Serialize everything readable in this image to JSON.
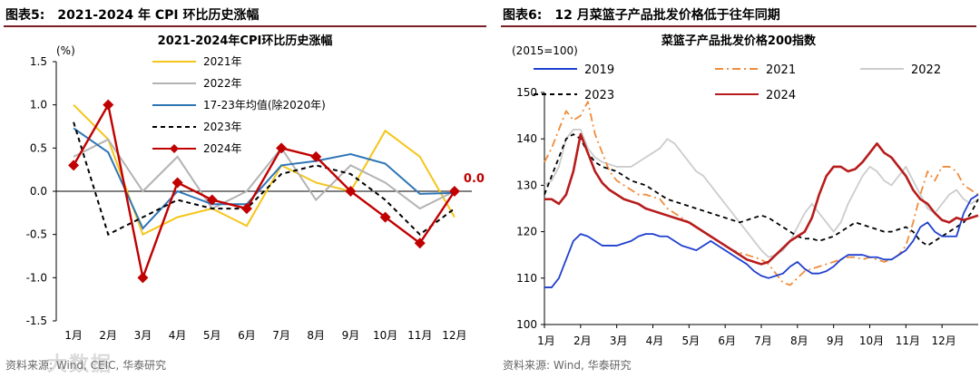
{
  "left": {
    "figure_title_label": "图表5:",
    "figure_title_text": "2021-2024 年 CPI 环比历史涨幅",
    "source": "资料来源: Wind, CEIC, 华泰研究"
  },
  "right": {
    "figure_title_label": "图表6:",
    "figure_title_text": "12 月菜篮子产品批发价格低于往年同期",
    "source": "资料来源: Wind, 华泰研究"
  },
  "watermark": "大数据",
  "chart_data": [
    {
      "type": "line",
      "title": "2021-2024年CPI环比历史涨幅",
      "ylabel": "(%)",
      "xlabel": "",
      "categories": [
        "1月",
        "2月",
        "3月",
        "4月",
        "5月",
        "6月",
        "7月",
        "8月",
        "9月",
        "10月",
        "11月",
        "12月"
      ],
      "ylim": [
        -1.5,
        1.5
      ],
      "yticks": [
        -1.5,
        -1.0,
        -0.5,
        0.0,
        0.5,
        1.0,
        1.5
      ],
      "ytick_labels": [
        "-1.5",
        "-1.0",
        "-0.5",
        "0.0",
        "0.5",
        "1.0",
        "1.5"
      ],
      "series": [
        {
          "name": "2021年",
          "color": "#f5c518",
          "style": "solid",
          "values": [
            1.0,
            0.6,
            -0.5,
            -0.3,
            -0.2,
            -0.4,
            0.3,
            0.1,
            0.0,
            0.7,
            0.4,
            -0.3
          ]
        },
        {
          "name": "2022年",
          "color": "#b3b3b3",
          "style": "solid",
          "values": [
            0.4,
            0.6,
            0.0,
            0.4,
            -0.2,
            0.0,
            0.5,
            -0.1,
            0.3,
            0.1,
            -0.2,
            0.0
          ]
        },
        {
          "name": "17-23年均值(除2020年)",
          "color": "#2e75b6",
          "style": "solid",
          "values": [
            0.73,
            0.45,
            -0.43,
            0.0,
            -0.15,
            -0.15,
            0.3,
            0.35,
            0.43,
            0.32,
            -0.03,
            -0.02
          ]
        },
        {
          "name": "2023年",
          "color": "#000000",
          "style": "dashed",
          "values": [
            0.8,
            -0.5,
            -0.3,
            -0.1,
            -0.2,
            -0.2,
            0.2,
            0.3,
            0.2,
            -0.1,
            -0.5,
            -0.2
          ]
        },
        {
          "name": "2024年",
          "color": "#c00000",
          "style": "solid",
          "marker": "diamond",
          "values": [
            0.3,
            1.0,
            -1.0,
            0.1,
            -0.1,
            -0.2,
            0.5,
            0.4,
            0.0,
            -0.3,
            -0.6,
            0.0
          ]
        }
      ],
      "annotations": [
        {
          "text": "0.0",
          "color": "#c00000",
          "at": "last point of 2024年"
        }
      ],
      "legend": "top-center"
    },
    {
      "type": "line",
      "title": "菜篮子产品批发价格200指数",
      "ylabel": "(2015=100)",
      "xlabel": "",
      "categories": [
        "1月",
        "2月",
        "3月",
        "4月",
        "5月",
        "6月",
        "7月",
        "8月",
        "9月",
        "10月",
        "11月",
        "12月"
      ],
      "ylim": [
        100,
        150
      ],
      "yticks": [
        100,
        110,
        120,
        130,
        140,
        150
      ],
      "ytick_labels": [
        "100",
        "110",
        "120",
        "130",
        "140",
        "150"
      ],
      "series": [
        {
          "name": "2019",
          "color": "#1f3fcf",
          "style": "solid",
          "x": [
            0,
            0.2,
            0.4,
            0.6,
            0.8,
            1.0,
            1.2,
            1.4,
            1.6,
            1.8,
            2.0,
            2.2,
            2.4,
            2.6,
            2.8,
            3.0,
            3.2,
            3.4,
            3.6,
            3.8,
            4.0,
            4.2,
            4.4,
            4.6,
            4.8,
            5.0,
            5.2,
            5.4,
            5.6,
            5.8,
            6.0,
            6.2,
            6.4,
            6.6,
            6.8,
            7.0,
            7.2,
            7.4,
            7.6,
            7.8,
            8.0,
            8.2,
            8.4,
            8.6,
            8.8,
            9.0,
            9.2,
            9.4,
            9.6,
            9.8,
            10.0,
            10.2,
            10.4,
            10.6,
            10.8,
            11.0,
            11.2,
            11.4,
            11.6,
            11.8,
            12.0
          ],
          "values": [
            108,
            108,
            110,
            114,
            118,
            119.5,
            119,
            118,
            117,
            117,
            117,
            117.5,
            118,
            119,
            119.5,
            119.5,
            119,
            119,
            118,
            117,
            116.5,
            116,
            117,
            118,
            117,
            116,
            115,
            114,
            113,
            111.5,
            110.5,
            110,
            110.5,
            111,
            112.5,
            113.5,
            112,
            111,
            111,
            111.5,
            112.5,
            114,
            115,
            115,
            115,
            114.5,
            114.5,
            114,
            114,
            115,
            116,
            118,
            121,
            122,
            120,
            119,
            119,
            119,
            124,
            127,
            128
          ]
        },
        {
          "name": "2021",
          "color": "#f08c3a",
          "style": "dashdot",
          "x": [
            0,
            0.2,
            0.4,
            0.6,
            0.8,
            1.0,
            1.2,
            1.4,
            1.6,
            1.8,
            2.0,
            2.2,
            2.4,
            2.6,
            2.8,
            3.0,
            3.2,
            3.4,
            3.6,
            3.8,
            4.0,
            4.2,
            4.4,
            4.6,
            4.8,
            5.0,
            5.2,
            5.4,
            5.6,
            5.8,
            6.0,
            6.2,
            6.4,
            6.6,
            6.8,
            7.0,
            7.2,
            7.4,
            7.6,
            7.8,
            8.0,
            8.2,
            8.4,
            8.6,
            8.8,
            9.0,
            9.2,
            9.4,
            9.6,
            9.8,
            10.0,
            10.2,
            10.4,
            10.6,
            10.8,
            11.0,
            11.2,
            11.4,
            11.6,
            11.8,
            12.0
          ],
          "values": [
            135,
            138,
            142,
            146,
            144,
            145,
            148,
            141,
            137,
            133,
            131,
            130,
            129,
            128,
            128,
            127.5,
            127,
            125,
            124,
            123,
            122,
            121,
            120,
            119,
            118,
            117,
            116,
            115.5,
            115,
            114.5,
            114,
            113,
            111,
            109,
            108.5,
            110,
            111.5,
            112,
            112.5,
            113,
            113.5,
            114,
            114.5,
            114.5,
            114,
            114.5,
            114,
            113.5,
            114,
            115,
            117,
            122,
            128,
            133,
            131,
            134,
            134,
            133,
            130,
            129,
            128
          ]
        },
        {
          "name": "2022",
          "color": "#cccccc",
          "style": "solid",
          "x": [
            0,
            0.2,
            0.4,
            0.6,
            0.8,
            1.0,
            1.2,
            1.4,
            1.6,
            1.8,
            2.0,
            2.2,
            2.4,
            2.6,
            2.8,
            3.0,
            3.2,
            3.4,
            3.6,
            3.8,
            4.0,
            4.2,
            4.4,
            4.6,
            4.8,
            5.0,
            5.2,
            5.4,
            5.6,
            5.8,
            6.0,
            6.2,
            6.4,
            6.6,
            6.8,
            7.0,
            7.2,
            7.4,
            7.6,
            7.8,
            8.0,
            8.2,
            8.4,
            8.6,
            8.8,
            9.0,
            9.2,
            9.4,
            9.6,
            9.8,
            10.0,
            10.2,
            10.4,
            10.6,
            10.8,
            11.0,
            11.2,
            11.4,
            11.6,
            11.8,
            12.0
          ],
          "values": [
            130,
            131,
            134,
            140,
            142,
            142,
            138,
            136,
            135,
            134.5,
            134,
            134,
            134,
            135,
            136,
            137,
            138,
            140,
            139,
            137,
            135,
            133,
            132,
            130,
            128,
            126,
            124,
            122,
            120,
            118,
            116,
            114.5,
            115,
            116,
            118,
            121,
            124,
            126,
            124,
            122,
            120,
            122,
            126,
            129,
            132,
            134,
            133,
            131,
            130,
            132,
            134,
            131,
            128,
            125,
            124,
            126,
            128,
            129,
            127,
            126,
            127
          ]
        },
        {
          "name": "2023",
          "color": "#000000",
          "style": "dashed",
          "x": [
            0,
            0.2,
            0.4,
            0.6,
            0.8,
            1.0,
            1.2,
            1.4,
            1.6,
            1.8,
            2.0,
            2.2,
            2.4,
            2.6,
            2.8,
            3.0,
            3.2,
            3.4,
            3.6,
            3.8,
            4.0,
            4.2,
            4.4,
            4.6,
            4.8,
            5.0,
            5.2,
            5.4,
            5.6,
            5.8,
            6.0,
            6.2,
            6.4,
            6.6,
            6.8,
            7.0,
            7.2,
            7.4,
            7.6,
            7.8,
            8.0,
            8.2,
            8.4,
            8.6,
            8.8,
            9.0,
            9.2,
            9.4,
            9.6,
            9.8,
            10.0,
            10.2,
            10.4,
            10.6,
            10.8,
            11.0,
            11.2,
            11.4,
            11.6,
            11.8,
            12.0
          ],
          "values": [
            128,
            132,
            136,
            140,
            141,
            140,
            137,
            135,
            134,
            133.5,
            133,
            132,
            131,
            130.5,
            130,
            129,
            128,
            127,
            126.5,
            126,
            125.5,
            125,
            124.5,
            124,
            123.5,
            123,
            122.5,
            122,
            122.5,
            123,
            123.5,
            123,
            122,
            121,
            120,
            119,
            118.5,
            118.5,
            118,
            118.5,
            119,
            120,
            121,
            122,
            121.5,
            121,
            120.5,
            120,
            120,
            120.5,
            121,
            120,
            118,
            117,
            118,
            119,
            120,
            121,
            122,
            124,
            127
          ]
        },
        {
          "name": "2024",
          "color": "#b71c1c",
          "style": "solid",
          "x": [
            0,
            0.2,
            0.4,
            0.6,
            0.8,
            1.0,
            1.2,
            1.4,
            1.6,
            1.8,
            2.0,
            2.2,
            2.4,
            2.6,
            2.8,
            3.0,
            3.2,
            3.4,
            3.6,
            3.8,
            4.0,
            4.2,
            4.4,
            4.6,
            4.8,
            5.0,
            5.2,
            5.4,
            5.6,
            5.8,
            6.0,
            6.2,
            6.4,
            6.6,
            6.8,
            7.0,
            7.2,
            7.4,
            7.6,
            7.8,
            8.0,
            8.2,
            8.4,
            8.6,
            8.8,
            9.0,
            9.2,
            9.4,
            9.6,
            9.8,
            10.0,
            10.2,
            10.4,
            10.6,
            10.8,
            11.0,
            11.2,
            11.4,
            11.6,
            11.8,
            12.0
          ],
          "values": [
            127,
            127,
            126,
            128,
            133,
            141,
            137,
            133,
            130.5,
            129,
            128,
            127,
            126.5,
            126,
            125,
            124.5,
            124,
            123.5,
            123,
            122.5,
            122,
            121,
            120,
            119,
            118,
            117,
            116,
            115,
            114,
            113.5,
            113,
            113.5,
            115,
            116.5,
            118,
            119,
            120,
            123,
            128,
            132,
            134,
            134,
            133,
            133.5,
            135,
            137,
            139,
            137,
            136,
            134,
            132,
            129,
            127,
            126,
            124,
            122.5,
            122,
            123,
            122.5,
            123,
            123.5
          ]
        }
      ],
      "legend": "top, two rows"
    }
  ]
}
